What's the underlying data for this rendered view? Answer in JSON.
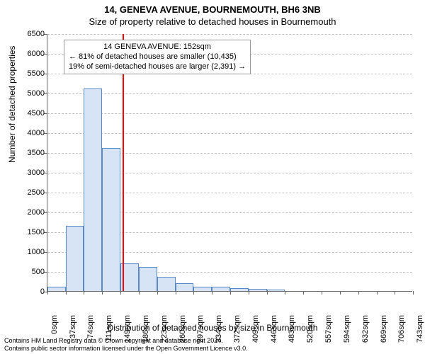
{
  "title": {
    "line1": "14, GENEVA AVENUE, BOURNEMOUTH, BH6 3NB",
    "line2": "Size of property relative to detached houses in Bournemouth"
  },
  "chart": {
    "type": "histogram",
    "ylabel": "Number of detached properties",
    "xlabel": "Distribution of detached houses by size in Bournemouth",
    "ylim": [
      0,
      6500
    ],
    "ytick_step": 500,
    "xticks": [
      0,
      37,
      74,
      111,
      149,
      186,
      223,
      260,
      297,
      334,
      372,
      409,
      446,
      483,
      520,
      557,
      594,
      632,
      669,
      706,
      743
    ],
    "xtick_suffix": "sqm",
    "x_max": 743,
    "bar_color": "#d6e4f5",
    "bar_border_color": "#5a87c6",
    "grid_color": "#bfbfbf",
    "background_color": "#ffffff",
    "bars": [
      {
        "x0": 0,
        "x1": 37,
        "y": 100
      },
      {
        "x0": 37,
        "x1": 74,
        "y": 1650
      },
      {
        "x0": 74,
        "x1": 111,
        "y": 5100
      },
      {
        "x0": 111,
        "x1": 149,
        "y": 3600
      },
      {
        "x0": 149,
        "x1": 186,
        "y": 700
      },
      {
        "x0": 186,
        "x1": 223,
        "y": 600
      },
      {
        "x0": 223,
        "x1": 260,
        "y": 350
      },
      {
        "x0": 260,
        "x1": 297,
        "y": 200
      },
      {
        "x0": 297,
        "x1": 334,
        "y": 100
      },
      {
        "x0": 334,
        "x1": 372,
        "y": 100
      },
      {
        "x0": 372,
        "x1": 409,
        "y": 70
      },
      {
        "x0": 409,
        "x1": 446,
        "y": 50
      },
      {
        "x0": 446,
        "x1": 483,
        "y": 30
      }
    ],
    "reference_line": {
      "x": 152,
      "color": "#ff0000",
      "width": 2
    },
    "annotation": {
      "line1": "14 GENEVA AVENUE: 152sqm",
      "line2": "← 81% of detached houses are smaller (10,435)",
      "line3": "19% of semi-detached houses are larger (2,391) →",
      "border_color": "#999999",
      "background_color": "#ffffff",
      "fontsize": 11
    }
  },
  "footer": {
    "line1": "Contains HM Land Registry data © Crown copyright and database right 2024.",
    "line2": "Contains public sector information licensed under the Open Government Licence v3.0."
  }
}
